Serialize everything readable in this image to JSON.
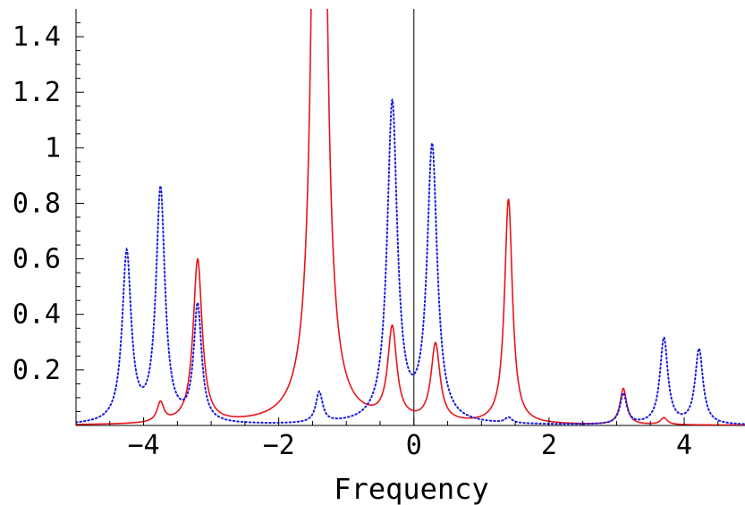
{
  "chart_data": {
    "type": "line",
    "title": "",
    "xlabel": "Frequency",
    "ylabel": "",
    "xlim": [
      -5,
      4.9
    ],
    "ylim": [
      0,
      1.5
    ],
    "grid": false,
    "legend": "none",
    "x_ticks": [
      -4,
      -2,
      0,
      2,
      4
    ],
    "x_tick_labels": [
      "−4",
      "−2",
      "0",
      "2",
      "4"
    ],
    "y_ticks": [
      0.2,
      0.4,
      0.6,
      0.8,
      1,
      1.2,
      1.4
    ],
    "y_tick_labels": [
      "0.2",
      "0.4",
      "0.6",
      "0.8",
      "1",
      "1.2",
      "1.4"
    ],
    "series": [
      {
        "style": "solid",
        "color": "#e8141a",
        "peaks": [
          {
            "x": -3.75,
            "height": 0.07,
            "width": 0.06
          },
          {
            "x": -3.2,
            "height": 0.59,
            "width": 0.08
          },
          {
            "x": -1.4,
            "height": 6.0,
            "width": 0.07
          },
          {
            "x": -0.32,
            "height": 0.33,
            "width": 0.08
          },
          {
            "x": 0.32,
            "height": 0.28,
            "width": 0.08
          },
          {
            "x": 1.4,
            "height": 0.81,
            "width": 0.07
          },
          {
            "x": 3.1,
            "height": 0.13,
            "width": 0.06
          },
          {
            "x": 3.7,
            "height": 0.025,
            "width": 0.06
          }
        ]
      },
      {
        "style": "dotted",
        "color": "#1a1ae6",
        "peaks": [
          {
            "x": -4.25,
            "height": 0.61,
            "width": 0.08
          },
          {
            "x": -3.75,
            "height": 0.84,
            "width": 0.08
          },
          {
            "x": -3.2,
            "height": 0.42,
            "width": 0.07
          },
          {
            "x": -1.4,
            "height": 0.11,
            "width": 0.06
          },
          {
            "x": -0.32,
            "height": 1.15,
            "width": 0.09
          },
          {
            "x": 0.27,
            "height": 0.99,
            "width": 0.09
          },
          {
            "x": 1.4,
            "height": 0.02,
            "width": 0.06
          },
          {
            "x": 3.1,
            "height": 0.11,
            "width": 0.06
          },
          {
            "x": 3.7,
            "height": 0.31,
            "width": 0.07
          },
          {
            "x": 4.22,
            "height": 0.27,
            "width": 0.07
          }
        ]
      }
    ]
  }
}
